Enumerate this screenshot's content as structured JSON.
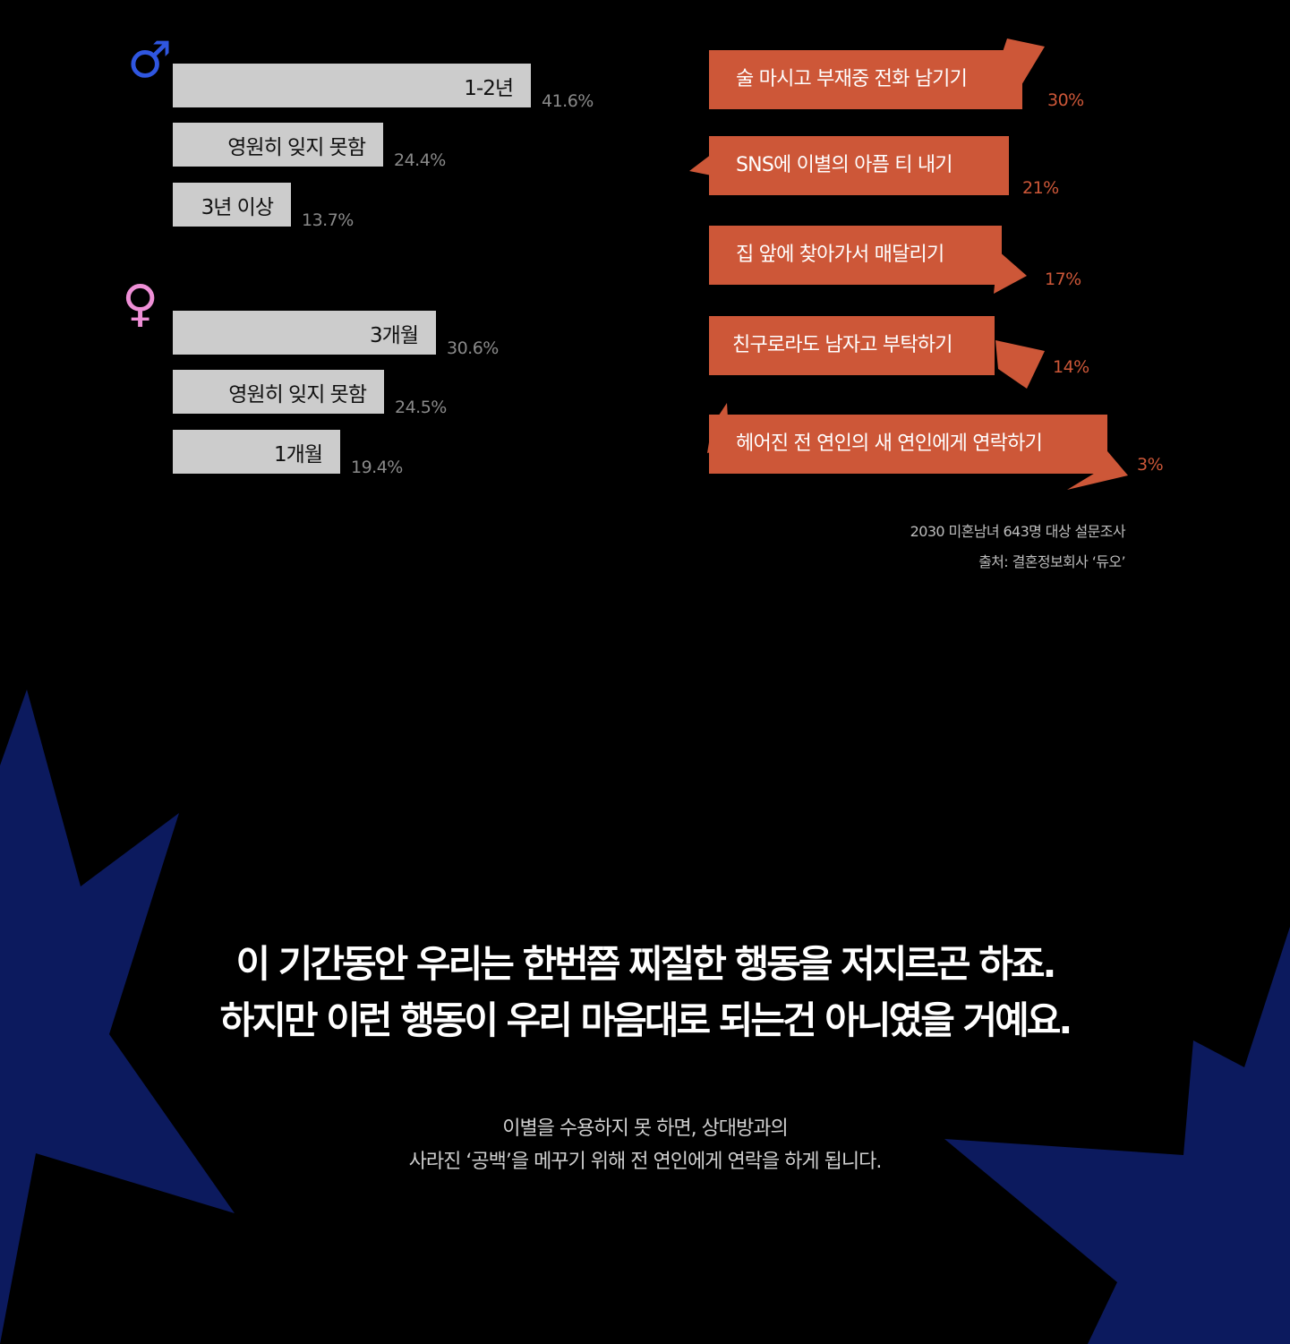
{
  "chart_data": [
    {
      "type": "bar",
      "group": "male",
      "categories": [
        "1-2년",
        "영원히 잊지 못함",
        "3년 이상"
      ],
      "values": [
        41.6,
        24.4,
        13.7
      ],
      "value_labels": [
        "41.6%",
        "24.4%",
        "13.7%"
      ]
    },
    {
      "type": "bar",
      "group": "female",
      "categories": [
        "3개월",
        "영원히 잊지 못함",
        "1개월"
      ],
      "values": [
        30.6,
        24.5,
        19.4
      ],
      "value_labels": [
        "30.6%",
        "24.5%",
        "19.4%"
      ]
    },
    {
      "type": "bar",
      "categories": [
        "술 마시고 부재중 전화 남기기",
        "SNS에 이별의 아픔 티 내기",
        "집 앞에 찾아가서 매달리기",
        "친구로라도 남자고 부탁하기",
        "헤어진 전 연인의 새 연인에게 연락하기"
      ],
      "values": [
        30,
        21,
        17,
        14,
        3
      ],
      "value_labels": [
        "30%",
        "21%",
        "17%",
        "14%",
        "3%"
      ]
    }
  ],
  "icons": {
    "male": "male-symbol-icon",
    "female": "female-symbol-icon"
  },
  "symbols": {
    "male": "♂",
    "female": "♀"
  },
  "colors": {
    "background": "#000000",
    "bar": "#cccccc",
    "bubble": "#cd5738",
    "male_symbol": "#2f56e0",
    "female_symbol": "#ee8fd6",
    "star": "#0c1a5e"
  },
  "source": {
    "line1": "2030 미혼남녀 643명 대상 설문조사",
    "line2": "출처: 결혼정보회사 ‘듀오’"
  },
  "headline": {
    "line1": "이 기간동안 우리는 한번쯤 찌질한 행동을 저지르곤 하죠.",
    "line2": "하지만 이런 행동이 우리 마음대로 되는건 아니였을 거예요."
  },
  "subtext": {
    "line1": "이별을 수용하지 못 하면, 상대방과의",
    "line2": "사라진 ‘공백’을 메꾸기 위해 전 연인에게 연락을 하게 됩니다."
  }
}
